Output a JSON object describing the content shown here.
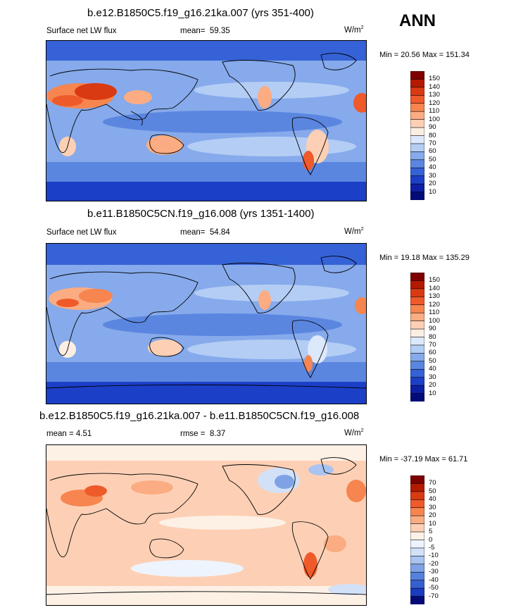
{
  "season": "ANN",
  "panels": [
    {
      "title": "b.e12.B1850C5.f19_g16.21ka.007 (yrs 351-400)",
      "left_label": "Surface net LW flux",
      "mean_label": "mean=",
      "mean_value": "59.35",
      "units": "W/m",
      "units_exp": "2",
      "minmax": "Min =  20.56 Max = 151.34",
      "colorbar_labels": [
        "150",
        "140",
        "130",
        "120",
        "110",
        "100",
        "90",
        "80",
        "70",
        "60",
        "50",
        "40",
        "30",
        "20",
        "10"
      ]
    },
    {
      "title": "b.e11.B1850C5CN.f19_g16.008 (yrs 1351-1400)",
      "left_label": "Surface net LW flux",
      "mean_label": "mean=",
      "mean_value": "54.84",
      "units": "W/m",
      "units_exp": "2",
      "minmax": "Min =  19.18 Max = 135.29",
      "colorbar_labels": [
        "150",
        "140",
        "130",
        "120",
        "110",
        "100",
        "90",
        "80",
        "70",
        "60",
        "50",
        "40",
        "30",
        "20",
        "10"
      ]
    },
    {
      "title": "b.e12.B1850C5.f19_g16.21ka.007 - b.e11.B1850C5CN.f19_g16.008",
      "left_label": "mean =   4.51",
      "mean_label": "rmse =",
      "mean_value": "8.37",
      "units": "W/m",
      "units_exp": "2",
      "minmax": "Min = -37.19 Max =  61.71",
      "colorbar_labels": [
        "70",
        "50",
        "40",
        "30",
        "20",
        "10",
        "5",
        "0",
        "-5",
        "-10",
        "-20",
        "-30",
        "-40",
        "-50",
        "-70"
      ]
    }
  ],
  "colors": {
    "abs_scale": [
      "#7f0000",
      "#b51a00",
      "#d93a12",
      "#ef5a2a",
      "#f7854f",
      "#fbac82",
      "#fdd0b5",
      "#fdeee2",
      "#dce8fb",
      "#b4cdf5",
      "#86aaeb",
      "#5b86e0",
      "#3562d6",
      "#1c3fc8",
      "#0e1fa6",
      "#040b78"
    ],
    "diff_scale": [
      "#7f0000",
      "#b51a00",
      "#d93a12",
      "#ef5a2a",
      "#f7854f",
      "#fbac82",
      "#fdd0b5",
      "#fdf1e6",
      "#eef4fd",
      "#d2e1f8",
      "#a9c4f1",
      "#7fa2e7",
      "#5680dc",
      "#3560d0",
      "#1a3cc0",
      "#040b78"
    ]
  },
  "chart_data": [
    {
      "type": "heatmap",
      "title": "b.e12.B1850C5.f19_g16.21ka.007 (yrs 351-400)",
      "variable": "Surface net LW flux",
      "mean": 59.35,
      "min": 20.56,
      "max": 151.34,
      "units": "W/m2",
      "levels": [
        10,
        20,
        30,
        40,
        50,
        60,
        70,
        80,
        90,
        100,
        110,
        120,
        130,
        140,
        150
      ]
    },
    {
      "type": "heatmap",
      "title": "b.e11.B1850C5CN.f19_g16.008 (yrs 1351-1400)",
      "variable": "Surface net LW flux",
      "mean": 54.84,
      "min": 19.18,
      "max": 135.29,
      "units": "W/m2",
      "levels": [
        10,
        20,
        30,
        40,
        50,
        60,
        70,
        80,
        90,
        100,
        110,
        120,
        130,
        140,
        150
      ]
    },
    {
      "type": "heatmap",
      "title": "b.e12.B1850C5.f19_g16.21ka.007 - b.e11.B1850C5CN.f19_g16.008",
      "mean": 4.51,
      "rmse": 8.37,
      "min": -37.19,
      "max": 61.71,
      "units": "W/m2",
      "levels": [
        -70,
        -50,
        -40,
        -30,
        -20,
        -10,
        -5,
        0,
        5,
        10,
        20,
        30,
        40,
        50,
        70
      ]
    }
  ]
}
